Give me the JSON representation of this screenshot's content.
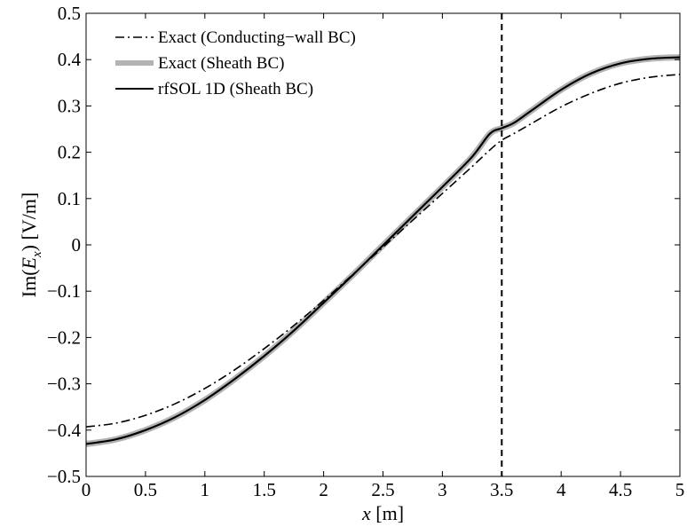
{
  "chart_data": {
    "type": "line",
    "title": "",
    "xlabel": {
      "var": "x",
      "unit": " [m]"
    },
    "ylabel": {
      "pre": "Im(",
      "var": "E",
      "sub": "x",
      "post": ") [V/m]"
    },
    "xlim": [
      0,
      5
    ],
    "ylim": [
      -0.5,
      0.5
    ],
    "xticks": [
      0,
      0.5,
      1,
      1.5,
      2,
      2.5,
      3,
      3.5,
      4,
      4.5,
      5
    ],
    "xtick_labels": [
      "0",
      "0.5",
      "1",
      "1.5",
      "2",
      "2.5",
      "3",
      "3.5",
      "4",
      "4.5",
      "5"
    ],
    "yticks": [
      -0.5,
      -0.4,
      -0.3,
      -0.2,
      -0.1,
      0,
      0.1,
      0.2,
      0.3,
      0.4,
      0.5
    ],
    "ytick_labels": [
      "−0.5",
      "−0.4",
      "−0.3",
      "−0.2",
      "−0.1",
      "0",
      "0.1",
      "0.2",
      "0.3",
      "0.4",
      "0.5"
    ],
    "grid": false,
    "legend_position": "top-left",
    "vline": {
      "x": 3.5,
      "style": "dashed",
      "color": "#000000"
    },
    "series": [
      {
        "name": "Exact (Conducting−wall BC)",
        "style": "dash-dot",
        "color": "#000000",
        "x": [
          0,
          0.25,
          0.5,
          0.75,
          1,
          1.25,
          1.5,
          1.75,
          2,
          2.25,
          2.5,
          2.75,
          3,
          3.25,
          3.4,
          3.5,
          3.6,
          3.75,
          4,
          4.25,
          4.5,
          4.75,
          5
        ],
        "y": [
          -0.393,
          -0.385,
          -0.368,
          -0.343,
          -0.31,
          -0.27,
          -0.224,
          -0.174,
          -0.12,
          -0.063,
          -0.005,
          0.053,
          0.111,
          0.169,
          0.205,
          0.226,
          0.24,
          0.262,
          0.298,
          0.327,
          0.349,
          0.362,
          0.368
        ]
      },
      {
        "name": "Exact (Sheath BC)",
        "style": "thick",
        "color": "#b3b3b3",
        "x": [
          0,
          0.25,
          0.5,
          0.75,
          1,
          1.25,
          1.5,
          1.75,
          2,
          2.25,
          2.5,
          2.75,
          3,
          3.25,
          3.4,
          3.5,
          3.6,
          3.75,
          4,
          4.25,
          4.5,
          4.75,
          5
        ],
        "y": [
          -0.43,
          -0.42,
          -0.4,
          -0.372,
          -0.335,
          -0.29,
          -0.24,
          -0.185,
          -0.125,
          -0.064,
          -0.001,
          0.062,
          0.125,
          0.19,
          0.24,
          0.252,
          0.263,
          0.29,
          0.335,
          0.37,
          0.392,
          0.402,
          0.405
        ]
      },
      {
        "name": "rfSOL 1D (Sheath BC)",
        "style": "solid",
        "color": "#000000",
        "x": [
          0,
          0.25,
          0.5,
          0.75,
          1,
          1.25,
          1.5,
          1.75,
          2,
          2.25,
          2.5,
          2.75,
          3,
          3.25,
          3.4,
          3.5,
          3.6,
          3.75,
          4,
          4.25,
          4.5,
          4.75,
          5
        ],
        "y": [
          -0.43,
          -0.42,
          -0.4,
          -0.372,
          -0.335,
          -0.29,
          -0.24,
          -0.185,
          -0.125,
          -0.064,
          -0.001,
          0.062,
          0.125,
          0.19,
          0.24,
          0.252,
          0.263,
          0.29,
          0.335,
          0.37,
          0.392,
          0.402,
          0.405
        ]
      }
    ]
  }
}
